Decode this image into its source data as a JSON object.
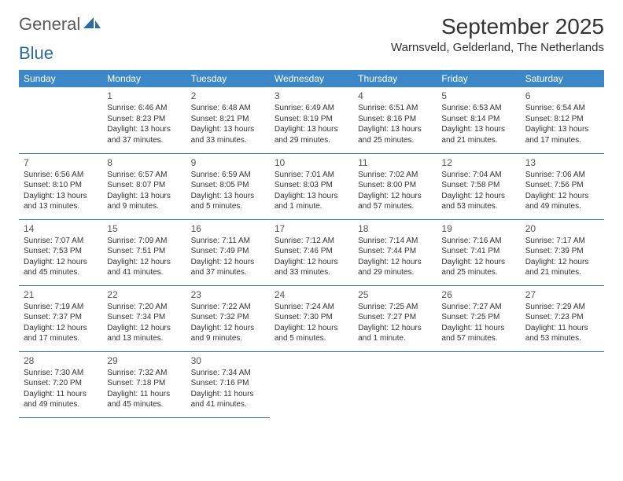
{
  "brand": {
    "part1": "General",
    "part2": "Blue"
  },
  "title": "September 2025",
  "location": "Warnsveld, Gelderland, The Netherlands",
  "colors": {
    "header_bg": "#3b87c8",
    "header_text": "#ffffff",
    "divider": "#2b6ca3",
    "body_text": "#333333",
    "logo_gray": "#5a5a5a",
    "logo_blue": "#2b6ca3",
    "background": "#ffffff"
  },
  "weekdays": [
    "Sunday",
    "Monday",
    "Tuesday",
    "Wednesday",
    "Thursday",
    "Friday",
    "Saturday"
  ],
  "weeks": [
    [
      null,
      {
        "d": "1",
        "sr": "Sunrise: 6:46 AM",
        "ss": "Sunset: 8:23 PM",
        "dl1": "Daylight: 13 hours",
        "dl2": "and 37 minutes."
      },
      {
        "d": "2",
        "sr": "Sunrise: 6:48 AM",
        "ss": "Sunset: 8:21 PM",
        "dl1": "Daylight: 13 hours",
        "dl2": "and 33 minutes."
      },
      {
        "d": "3",
        "sr": "Sunrise: 6:49 AM",
        "ss": "Sunset: 8:19 PM",
        "dl1": "Daylight: 13 hours",
        "dl2": "and 29 minutes."
      },
      {
        "d": "4",
        "sr": "Sunrise: 6:51 AM",
        "ss": "Sunset: 8:16 PM",
        "dl1": "Daylight: 13 hours",
        "dl2": "and 25 minutes."
      },
      {
        "d": "5",
        "sr": "Sunrise: 6:53 AM",
        "ss": "Sunset: 8:14 PM",
        "dl1": "Daylight: 13 hours",
        "dl2": "and 21 minutes."
      },
      {
        "d": "6",
        "sr": "Sunrise: 6:54 AM",
        "ss": "Sunset: 8:12 PM",
        "dl1": "Daylight: 13 hours",
        "dl2": "and 17 minutes."
      }
    ],
    [
      {
        "d": "7",
        "sr": "Sunrise: 6:56 AM",
        "ss": "Sunset: 8:10 PM",
        "dl1": "Daylight: 13 hours",
        "dl2": "and 13 minutes."
      },
      {
        "d": "8",
        "sr": "Sunrise: 6:57 AM",
        "ss": "Sunset: 8:07 PM",
        "dl1": "Daylight: 13 hours",
        "dl2": "and 9 minutes."
      },
      {
        "d": "9",
        "sr": "Sunrise: 6:59 AM",
        "ss": "Sunset: 8:05 PM",
        "dl1": "Daylight: 13 hours",
        "dl2": "and 5 minutes."
      },
      {
        "d": "10",
        "sr": "Sunrise: 7:01 AM",
        "ss": "Sunset: 8:03 PM",
        "dl1": "Daylight: 13 hours",
        "dl2": "and 1 minute."
      },
      {
        "d": "11",
        "sr": "Sunrise: 7:02 AM",
        "ss": "Sunset: 8:00 PM",
        "dl1": "Daylight: 12 hours",
        "dl2": "and 57 minutes."
      },
      {
        "d": "12",
        "sr": "Sunrise: 7:04 AM",
        "ss": "Sunset: 7:58 PM",
        "dl1": "Daylight: 12 hours",
        "dl2": "and 53 minutes."
      },
      {
        "d": "13",
        "sr": "Sunrise: 7:06 AM",
        "ss": "Sunset: 7:56 PM",
        "dl1": "Daylight: 12 hours",
        "dl2": "and 49 minutes."
      }
    ],
    [
      {
        "d": "14",
        "sr": "Sunrise: 7:07 AM",
        "ss": "Sunset: 7:53 PM",
        "dl1": "Daylight: 12 hours",
        "dl2": "and 45 minutes."
      },
      {
        "d": "15",
        "sr": "Sunrise: 7:09 AM",
        "ss": "Sunset: 7:51 PM",
        "dl1": "Daylight: 12 hours",
        "dl2": "and 41 minutes."
      },
      {
        "d": "16",
        "sr": "Sunrise: 7:11 AM",
        "ss": "Sunset: 7:49 PM",
        "dl1": "Daylight: 12 hours",
        "dl2": "and 37 minutes."
      },
      {
        "d": "17",
        "sr": "Sunrise: 7:12 AM",
        "ss": "Sunset: 7:46 PM",
        "dl1": "Daylight: 12 hours",
        "dl2": "and 33 minutes."
      },
      {
        "d": "18",
        "sr": "Sunrise: 7:14 AM",
        "ss": "Sunset: 7:44 PM",
        "dl1": "Daylight: 12 hours",
        "dl2": "and 29 minutes."
      },
      {
        "d": "19",
        "sr": "Sunrise: 7:16 AM",
        "ss": "Sunset: 7:41 PM",
        "dl1": "Daylight: 12 hours",
        "dl2": "and 25 minutes."
      },
      {
        "d": "20",
        "sr": "Sunrise: 7:17 AM",
        "ss": "Sunset: 7:39 PM",
        "dl1": "Daylight: 12 hours",
        "dl2": "and 21 minutes."
      }
    ],
    [
      {
        "d": "21",
        "sr": "Sunrise: 7:19 AM",
        "ss": "Sunset: 7:37 PM",
        "dl1": "Daylight: 12 hours",
        "dl2": "and 17 minutes."
      },
      {
        "d": "22",
        "sr": "Sunrise: 7:20 AM",
        "ss": "Sunset: 7:34 PM",
        "dl1": "Daylight: 12 hours",
        "dl2": "and 13 minutes."
      },
      {
        "d": "23",
        "sr": "Sunrise: 7:22 AM",
        "ss": "Sunset: 7:32 PM",
        "dl1": "Daylight: 12 hours",
        "dl2": "and 9 minutes."
      },
      {
        "d": "24",
        "sr": "Sunrise: 7:24 AM",
        "ss": "Sunset: 7:30 PM",
        "dl1": "Daylight: 12 hours",
        "dl2": "and 5 minutes."
      },
      {
        "d": "25",
        "sr": "Sunrise: 7:25 AM",
        "ss": "Sunset: 7:27 PM",
        "dl1": "Daylight: 12 hours",
        "dl2": "and 1 minute."
      },
      {
        "d": "26",
        "sr": "Sunrise: 7:27 AM",
        "ss": "Sunset: 7:25 PM",
        "dl1": "Daylight: 11 hours",
        "dl2": "and 57 minutes."
      },
      {
        "d": "27",
        "sr": "Sunrise: 7:29 AM",
        "ss": "Sunset: 7:23 PM",
        "dl1": "Daylight: 11 hours",
        "dl2": "and 53 minutes."
      }
    ],
    [
      {
        "d": "28",
        "sr": "Sunrise: 7:30 AM",
        "ss": "Sunset: 7:20 PM",
        "dl1": "Daylight: 11 hours",
        "dl2": "and 49 minutes."
      },
      {
        "d": "29",
        "sr": "Sunrise: 7:32 AM",
        "ss": "Sunset: 7:18 PM",
        "dl1": "Daylight: 11 hours",
        "dl2": "and 45 minutes."
      },
      {
        "d": "30",
        "sr": "Sunrise: 7:34 AM",
        "ss": "Sunset: 7:16 PM",
        "dl1": "Daylight: 11 hours",
        "dl2": "and 41 minutes."
      },
      null,
      null,
      null,
      null
    ]
  ]
}
